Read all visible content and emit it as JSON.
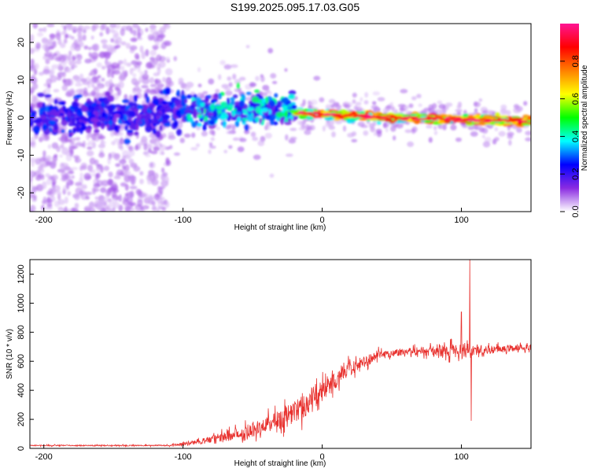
{
  "title": "S199.2025.095.17.03.G05",
  "colors": {
    "snr_line": "#e8312e",
    "frame": "#000000"
  },
  "chart_data": [
    {
      "type": "heatmap",
      "xlabel": "Height of straight line (km)",
      "ylabel": "Frequency (Hz)",
      "xlim": [
        -210,
        150
      ],
      "ylim": [
        -25,
        25
      ],
      "xticks": [
        -200,
        -100,
        0,
        100
      ],
      "yticks": [
        -20,
        -10,
        0,
        10,
        20
      ],
      "colorbar": {
        "label": "Normalized spectral amplitude",
        "range": [
          0,
          1
        ],
        "ticks": [
          "0.0",
          "0.2",
          "0.4",
          "0.6",
          "0.8"
        ],
        "colormap": [
          "#ffffff",
          "#8a2be2",
          "#0000ff",
          "#00ffff",
          "#00ff00",
          "#ffff00",
          "#ff8000",
          "#ff0000",
          "#ff1493"
        ]
      },
      "ridge": [
        {
          "x": -210,
          "f": 0.0
        },
        {
          "x": -150,
          "f": 0.5
        },
        {
          "x": -100,
          "f": 1.5
        },
        {
          "x": -50,
          "f": 2.5
        },
        {
          "x": -25,
          "f": 1.5
        },
        {
          "x": 0,
          "f": 1.0
        },
        {
          "x": 50,
          "f": 0.0
        },
        {
          "x": 100,
          "f": -0.5
        },
        {
          "x": 150,
          "f": -1.0
        }
      ]
    },
    {
      "type": "line",
      "xlabel": "Height of straight line (km)",
      "ylabel": "SNR (10 * v/v)",
      "xlim": [
        -210,
        150
      ],
      "ylim": [
        0,
        1300
      ],
      "xticks": [
        -200,
        -100,
        0,
        100
      ],
      "yticks": [
        0,
        200,
        400,
        600,
        800,
        1000,
        1200
      ],
      "series": [
        {
          "envelope": [
            {
              "x": -210,
              "mean": 20,
              "spread": 8
            },
            {
              "x": -110,
              "mean": 20,
              "spread": 8
            },
            {
              "x": -100,
              "mean": 30,
              "spread": 20
            },
            {
              "x": -80,
              "mean": 60,
              "spread": 50
            },
            {
              "x": -60,
              "mean": 100,
              "spread": 80
            },
            {
              "x": -40,
              "mean": 160,
              "spread": 120
            },
            {
              "x": -20,
              "mean": 250,
              "spread": 160
            },
            {
              "x": -10,
              "mean": 320,
              "spread": 180
            },
            {
              "x": 0,
              "mean": 400,
              "spread": 150
            },
            {
              "x": 20,
              "mean": 550,
              "spread": 100
            },
            {
              "x": 40,
              "mean": 640,
              "spread": 60
            },
            {
              "x": 60,
              "mean": 670,
              "spread": 50
            },
            {
              "x": 90,
              "mean": 670,
              "spread": 80
            },
            {
              "x": 100,
              "mean": 680,
              "spread": 120
            },
            {
              "x": 110,
              "mean": 670,
              "spread": 60
            },
            {
              "x": 150,
              "mean": 700,
              "spread": 40
            }
          ],
          "peaks": [
            {
              "x": 106,
              "y": 1300
            },
            {
              "x": 107,
              "y": 190
            },
            {
              "x": 100,
              "y": 940
            }
          ]
        }
      ]
    }
  ]
}
